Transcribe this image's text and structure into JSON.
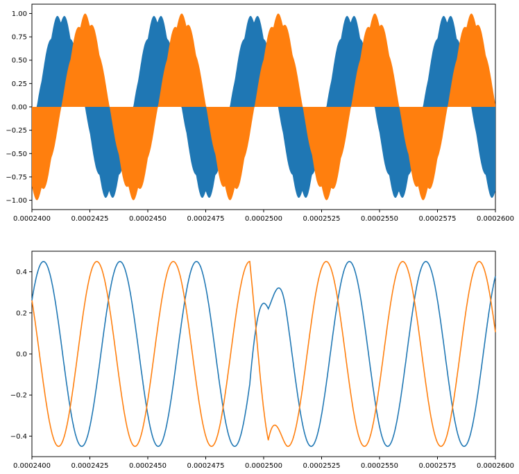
{
  "chart_data": [
    {
      "type": "area",
      "description": "Two modulated high-frequency carriers filling envelopes; blue and orange series",
      "x_range": [
        0.00024,
        0.00026
      ],
      "ylim": [
        -1.1,
        1.1
      ],
      "xticks": [
        0.00024,
        0.0002425,
        0.000245,
        0.0002475,
        0.00025,
        0.0002525,
        0.000255,
        0.0002575,
        0.00026
      ],
      "xtick_labels": [
        "0.0002400",
        "0.0002425",
        "0.0002450",
        "0.0002475",
        "0.0002500",
        "0.0002525",
        "0.0002550",
        "0.0002575",
        "0.0002600"
      ],
      "yticks": [
        -1.0,
        -0.75,
        -0.5,
        -0.25,
        0.0,
        0.25,
        0.5,
        0.75,
        1.0
      ],
      "ytick_labels": [
        "−1.00",
        "−0.75",
        "−0.50",
        "−0.25",
        "0.00",
        "0.25",
        "0.50",
        "0.75",
        "1.00"
      ],
      "envelope_freq": 300000,
      "series": [
        {
          "color": "#1f77b4",
          "phase": 2.2,
          "ripple_amp": 0.11,
          "ripple_freq": 1200000
        },
        {
          "color": "#ff7f0e",
          "phase": 0.6,
          "ripple_amp": 0.1,
          "ripple_freq": 1200000
        }
      ],
      "grid": false
    },
    {
      "type": "line",
      "x_range": [
        0.00024,
        0.00026
      ],
      "ylim": [
        -0.5,
        0.5
      ],
      "xticks": [
        0.00024,
        0.0002425,
        0.000245,
        0.0002475,
        0.00025,
        0.0002525,
        0.000255,
        0.0002575,
        0.00026
      ],
      "xtick_labels": [
        "0.0002400",
        "0.0002425",
        "0.0002450",
        "0.0002475",
        "0.0002500",
        "0.0002525",
        "0.0002550",
        "0.0002575",
        "0.0002600"
      ],
      "yticks": [
        -0.4,
        -0.2,
        0.0,
        0.2,
        0.4
      ],
      "ytick_labels": [
        "−0.4",
        "−0.2",
        "0.0",
        "0.2",
        "0.4"
      ],
      "series": [
        {
          "color": "#1f77b4",
          "amplitude": 0.45,
          "period": 3.3e-06,
          "phase_zero": 0.0002405,
          "glitch_x": 0.0002502,
          "glitch_y": 0.22
        },
        {
          "color": "#ff7f0e",
          "amplitude": 0.45,
          "period": 3.3e-06,
          "phase_zero": 0.0002395,
          "glitch_x": 0.0002502,
          "glitch_y": -0.42
        }
      ],
      "grid": false
    }
  ]
}
